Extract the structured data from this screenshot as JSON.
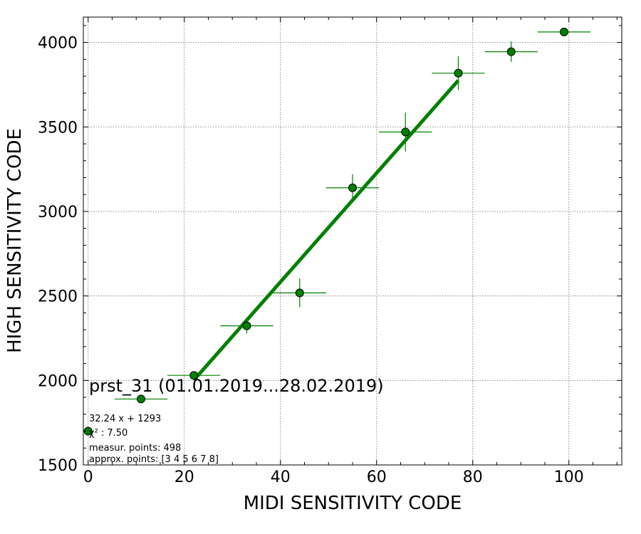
{
  "chart_data": {
    "type": "scatter",
    "title": "",
    "xlabel": "MIDI SENSITIVITY CODE",
    "ylabel": "HIGH SENSITIVITY CODE",
    "xlim": [
      -1,
      111
    ],
    "ylim": [
      1500,
      4150
    ],
    "xticks": [
      0,
      20,
      40,
      60,
      80,
      100
    ],
    "yticks": [
      1500,
      2000,
      2500,
      3000,
      3500,
      4000
    ],
    "grid": true,
    "series": [
      {
        "color": "#008000",
        "points": [
          {
            "x": 0,
            "y": 1700,
            "xerr": 0,
            "yerr": 0
          },
          {
            "x": 11,
            "y": 1890,
            "xerr": 5.5,
            "yerr": 0
          },
          {
            "x": 22,
            "y": 2030,
            "xerr": 5.5,
            "yerr": 20
          },
          {
            "x": 33,
            "y": 2323,
            "xerr": 5.5,
            "yerr": 45
          },
          {
            "x": 44,
            "y": 2518,
            "xerr": 5.5,
            "yerr": 85
          },
          {
            "x": 55,
            "y": 3140,
            "xerr": 5.5,
            "yerr": 80
          },
          {
            "x": 66,
            "y": 3470,
            "xerr": 5.5,
            "yerr": 115
          },
          {
            "x": 77,
            "y": 3818,
            "xerr": 5.5,
            "yerr": 100
          },
          {
            "x": 88,
            "y": 3945,
            "xerr": 5.5,
            "yerr": 60
          },
          {
            "x": 99,
            "y": 4062,
            "xerr": 5.5,
            "yerr": 0
          }
        ]
      }
    ],
    "fit": {
      "slope": 32.24,
      "intercept": 1293,
      "x_range": [
        22,
        77
      ],
      "color": "#008000"
    }
  },
  "annotation": {
    "title": "prst_31 (01.01.2019...28.02.2019)",
    "formula": "32.24 x + 1293",
    "chi2": "χ² : 7.50",
    "measured": "measur. points: 498",
    "approx": "approx. points: [3 4 5 6 7 8]"
  }
}
